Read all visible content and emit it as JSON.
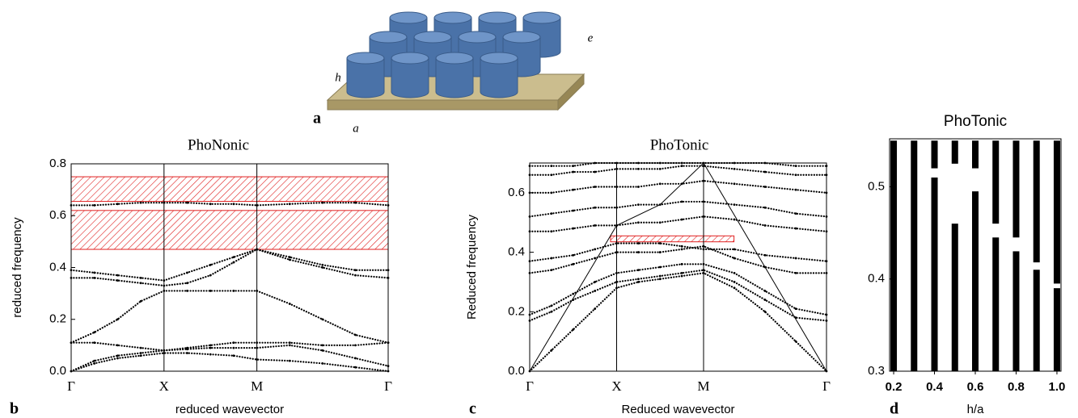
{
  "figure": {
    "panel_label": "a",
    "labels": [
      "h",
      "e",
      "a"
    ]
  },
  "chart_data": [
    {
      "type": "band_diagram",
      "panel_label": "b",
      "title": "PhoNonic",
      "xlabel": "reduced wavevector",
      "ylabel": "reduced frequency",
      "xlim": [
        0,
        3.414
      ],
      "xticks": [
        {
          "value": 0,
          "label": "Γ"
        },
        {
          "value": 1,
          "label": "X"
        },
        {
          "value": 2,
          "label": "M"
        },
        {
          "value": 3.414,
          "label": "Γ"
        }
      ],
      "ylim": [
        0,
        0.8
      ],
      "yticks": [
        {
          "value": 0,
          "label": "0.0"
        },
        {
          "value": 0.2,
          "label": "0.2"
        },
        {
          "value": 0.4,
          "label": "0.4"
        },
        {
          "value": 0.6,
          "label": "0.6"
        },
        0.8
      ],
      "gap_color": "#e02020",
      "gaps": [
        {
          "y": [
            0.47,
            0.62
          ]
        },
        {
          "y": [
            0.655,
            0.75
          ]
        }
      ],
      "x": [
        0,
        0.25,
        0.5,
        0.75,
        1,
        1.25,
        1.5,
        1.75,
        2,
        2.354,
        2.707,
        3.061,
        3.414
      ],
      "series": [
        {
          "color": "#000000",
          "values": [
            0,
            0.03,
            0.05,
            0.06,
            0.07,
            0.07,
            0.065,
            0.06,
            0.045,
            0.04,
            0.03,
            0.015,
            0
          ]
        },
        {
          "color": "#000000",
          "values": [
            0,
            0.04,
            0.06,
            0.07,
            0.08,
            0.085,
            0.09,
            0.09,
            0.09,
            0.1,
            0.08,
            0.05,
            0.02
          ]
        },
        {
          "color": "#000000",
          "values": [
            0.11,
            0.11,
            0.1,
            0.09,
            0.08,
            0.09,
            0.1,
            0.11,
            0.11,
            0.11,
            0.1,
            0.1,
            0.11
          ]
        },
        {
          "color": "#000000",
          "values": [
            0.11,
            0.15,
            0.2,
            0.27,
            0.31,
            0.31,
            0.31,
            0.31,
            0.31,
            0.26,
            0.2,
            0.14,
            0.11
          ]
        },
        {
          "color": "#000000",
          "values": [
            0.36,
            0.36,
            0.35,
            0.34,
            0.33,
            0.34,
            0.37,
            0.42,
            0.47,
            0.43,
            0.4,
            0.37,
            0.36
          ]
        },
        {
          "color": "#000000",
          "values": [
            0.39,
            0.38,
            0.37,
            0.36,
            0.35,
            0.38,
            0.41,
            0.44,
            0.47,
            0.44,
            0.41,
            0.39,
            0.39
          ]
        },
        {
          "color": "#000000",
          "values": [
            0.64,
            0.64,
            0.645,
            0.65,
            0.65,
            0.65,
            0.645,
            0.645,
            0.64,
            0.645,
            0.65,
            0.65,
            0.64
          ]
        }
      ]
    },
    {
      "type": "band_diagram",
      "panel_label": "c",
      "title": "PhoTonic",
      "xlabel": "Reduced wavevector",
      "ylabel": "Reduced frequency",
      "xlim": [
        0,
        3.414
      ],
      "xticks": [
        {
          "value": 0,
          "label": "Γ"
        },
        {
          "value": 1,
          "label": "X"
        },
        {
          "value": 2,
          "label": "M"
        },
        {
          "value": 3.414,
          "label": "Γ"
        }
      ],
      "ylim": [
        0,
        0.7
      ],
      "yticks": [
        {
          "value": 0,
          "label": "0.0"
        },
        0.2,
        0.4,
        0.6
      ],
      "gap_color": "#e02020",
      "gaps": [
        {
          "x": [
            0.93,
            2.35
          ],
          "y": [
            0.435,
            0.455
          ]
        }
      ],
      "light_line": {
        "color": "#000000",
        "x": [
          0,
          1,
          1.5,
          2,
          3.414
        ],
        "values": [
          0,
          0.49,
          0.56,
          0.7,
          0
        ]
      },
      "x": [
        0,
        0.25,
        0.5,
        0.75,
        1,
        1.25,
        1.5,
        1.75,
        2,
        2.354,
        2.707,
        3.061,
        3.414
      ],
      "series": [
        {
          "color": "#000000",
          "values": [
            0,
            0.07,
            0.14,
            0.21,
            0.28,
            0.3,
            0.31,
            0.32,
            0.33,
            0.28,
            0.2,
            0.1,
            0
          ]
        },
        {
          "color": "#000000",
          "values": [
            0.17,
            0.2,
            0.24,
            0.27,
            0.3,
            0.31,
            0.32,
            0.33,
            0.34,
            0.3,
            0.24,
            0.18,
            0.17
          ]
        },
        {
          "color": "#000000",
          "values": [
            0.19,
            0.22,
            0.26,
            0.3,
            0.33,
            0.34,
            0.35,
            0.36,
            0.36,
            0.33,
            0.27,
            0.21,
            0.19
          ]
        },
        {
          "color": "#000000",
          "values": [
            0.33,
            0.34,
            0.36,
            0.38,
            0.4,
            0.4,
            0.4,
            0.41,
            0.42,
            0.38,
            0.35,
            0.33,
            0.33
          ]
        },
        {
          "color": "#000000",
          "values": [
            0.37,
            0.38,
            0.39,
            0.41,
            0.43,
            0.43,
            0.43,
            0.42,
            0.41,
            0.41,
            0.39,
            0.38,
            0.37
          ]
        },
        {
          "color": "#000000",
          "values": [
            0.47,
            0.47,
            0.48,
            0.49,
            0.49,
            0.5,
            0.5,
            0.51,
            0.52,
            0.51,
            0.49,
            0.48,
            0.47
          ]
        },
        {
          "color": "#000000",
          "values": [
            0.52,
            0.53,
            0.54,
            0.55,
            0.55,
            0.56,
            0.56,
            0.57,
            0.57,
            0.56,
            0.55,
            0.53,
            0.52
          ]
        },
        {
          "color": "#000000",
          "values": [
            0.6,
            0.6,
            0.61,
            0.62,
            0.62,
            0.62,
            0.63,
            0.63,
            0.64,
            0.63,
            0.62,
            0.61,
            0.6
          ]
        },
        {
          "color": "#000000",
          "values": [
            0.66,
            0.66,
            0.67,
            0.67,
            0.68,
            0.68,
            0.68,
            0.69,
            0.69,
            0.68,
            0.67,
            0.66,
            0.66
          ]
        },
        {
          "color": "#000000",
          "values": [
            0.69,
            0.69,
            0.69,
            0.7,
            0.7,
            0.7,
            0.7,
            0.7,
            0.7,
            0.7,
            0.7,
            0.69,
            0.69
          ]
        }
      ]
    },
    {
      "type": "gap_map",
      "panel_label": "d",
      "title": "PhoTonic",
      "xlabel": "h/a",
      "xlim": [
        0.18,
        1.02
      ],
      "xticks": [
        0.2,
        0.4,
        0.6,
        0.8,
        {
          "value": 1,
          "label": "1.0"
        }
      ],
      "ylim": [
        0.3,
        0.552
      ],
      "yticks": [
        0.3,
        0.4,
        0.5
      ],
      "color": "#000000",
      "x": [
        0.2,
        0.3,
        0.4,
        0.5,
        0.6,
        0.7,
        0.8,
        0.9,
        1
      ],
      "band_top": [
        0.55,
        0.55,
        0.55,
        0.55,
        0.55,
        0.55,
        0.55,
        0.55,
        0.55
      ],
      "gap_low": [
        null,
        null,
        0.51,
        0.46,
        0.495,
        0.445,
        0.43,
        0.41,
        0.39
      ],
      "gap_high": [
        null,
        null,
        0.52,
        0.525,
        0.52,
        0.46,
        0.445,
        0.418,
        0.395
      ]
    }
  ]
}
